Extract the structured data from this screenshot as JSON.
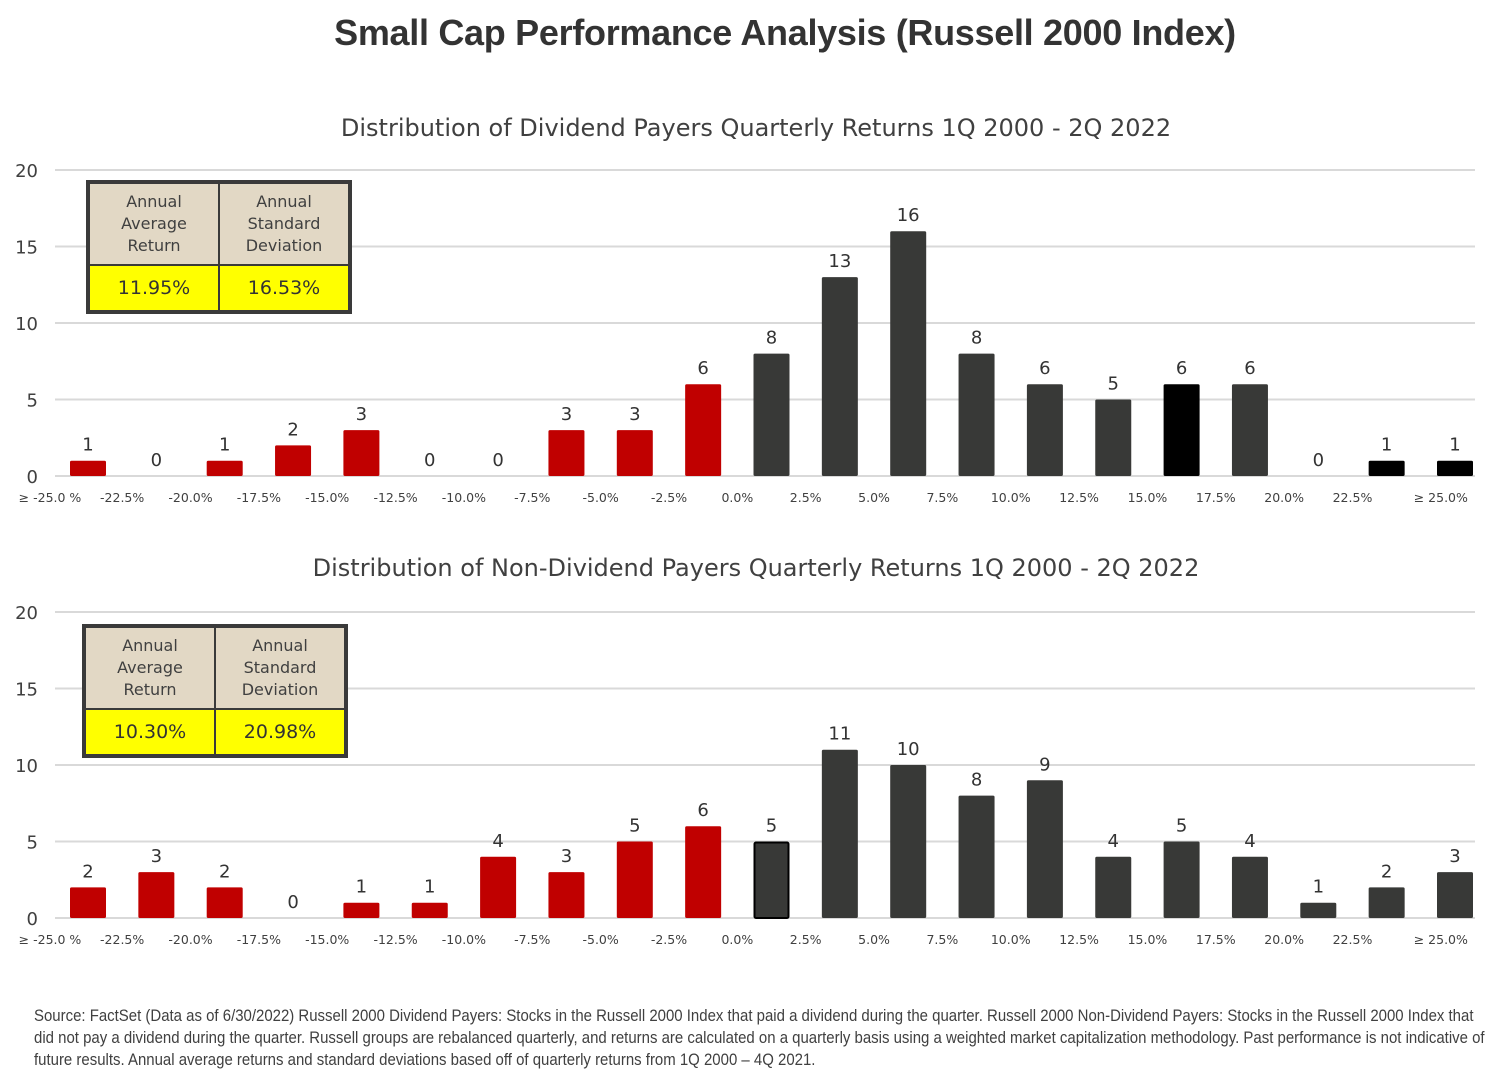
{
  "main_title": "Small Cap Performance Analysis (Russell 2000 Index)",
  "colors": {
    "negative": "#c00000",
    "positive": "#383937",
    "highlight": "#000000",
    "grid": "#d9d9d9",
    "stat_header_bg": "#e2d8c5",
    "stat_value_bg": "#ffff00"
  },
  "chart_data": [
    {
      "type": "bar",
      "title": "Distribution of Dividend Payers Quarterly Returns 1Q 2000 - 2Q 2022",
      "xlabel": "",
      "ylabel": "",
      "ylim": [
        0,
        20
      ],
      "yticks": [
        0,
        5,
        10,
        15,
        20
      ],
      "grid": true,
      "x_tick_labels": [
        "≥ -25.0 %",
        "-22.5%",
        "-20.0%",
        "-17.5%",
        "-15.0%",
        "-12.5%",
        "-10.0%",
        "-7.5%",
        "-5.0%",
        "-2.5%",
        "0.0%",
        "2.5%",
        "5.0%",
        "7.5%",
        "10.0%",
        "12.5%",
        "15.0%",
        "17.5%",
        "20.0%",
        "22.5%",
        "≥ 25.0%"
      ],
      "values": [
        1,
        0,
        1,
        2,
        3,
        0,
        0,
        3,
        3,
        6,
        8,
        13,
        16,
        8,
        6,
        5,
        6,
        6,
        0,
        1,
        1
      ],
      "bar_colors": [
        "negative",
        "negative",
        "negative",
        "negative",
        "negative",
        "negative",
        "negative",
        "negative",
        "negative",
        "negative",
        "positive",
        "positive",
        "positive",
        "positive",
        "positive",
        "positive",
        "highlight",
        "positive",
        "positive",
        "highlight",
        "highlight"
      ],
      "outlined_bars": [],
      "stats": {
        "headers": [
          "Annual Average Return",
          "Annual Standard Deviation"
        ],
        "header_lines": [
          [
            "Annual",
            "Average",
            "Return"
          ],
          [
            "Annual",
            "Standard",
            "Deviation"
          ]
        ],
        "values": [
          "11.95%",
          "16.53%"
        ]
      }
    },
    {
      "type": "bar",
      "title": "Distribution of Non-Dividend Payers Quarterly Returns 1Q 2000 - 2Q 2022",
      "xlabel": "",
      "ylabel": "",
      "ylim": [
        0,
        20
      ],
      "yticks": [
        0,
        5,
        10,
        15,
        20
      ],
      "grid": true,
      "x_tick_labels": [
        "≥ -25.0 %",
        "-22.5%",
        "-20.0%",
        "-17.5%",
        "-15.0%",
        "-12.5%",
        "-10.0%",
        "-7.5%",
        "-5.0%",
        "-2.5%",
        "0.0%",
        "2.5%",
        "5.0%",
        "7.5%",
        "10.0%",
        "12.5%",
        "15.0%",
        "17.5%",
        "20.0%",
        "22.5%",
        "≥ 25.0%"
      ],
      "values": [
        2,
        3,
        2,
        0,
        1,
        1,
        4,
        3,
        5,
        6,
        5,
        11,
        10,
        8,
        9,
        4,
        5,
        4,
        1,
        2,
        3
      ],
      "bar_colors": [
        "negative",
        "negative",
        "negative",
        "negative",
        "negative",
        "negative",
        "negative",
        "negative",
        "negative",
        "negative",
        "positive",
        "positive",
        "positive",
        "positive",
        "positive",
        "positive",
        "positive",
        "positive",
        "positive",
        "positive",
        "positive"
      ],
      "outlined_bars": [
        10
      ],
      "stats": {
        "headers": [
          "Annual Average Return",
          "Annual Standard Deviation"
        ],
        "header_lines": [
          [
            "Annual",
            "Average",
            "Return"
          ],
          [
            "Annual",
            "Standard",
            "Deviation"
          ]
        ],
        "values": [
          "10.30%",
          "20.98%"
        ]
      }
    }
  ],
  "footnote": "Source: FactSet (Data as of 6/30/2022) Russell 2000 Dividend Payers: Stocks in the Russell 2000 Index that paid a dividend during the quarter. Russell 2000 Non-Dividend Payers: Stocks in the Russell 2000 Index that did not pay a dividend during the quarter. Russell groups are rebalanced quarterly, and returns are calculated on a quarterly basis using a weighted market capitalization methodology. Past performance is not indicative of future results. Annual average returns and standard deviations based off of quarterly returns from 1Q 2000 – 4Q 2021."
}
